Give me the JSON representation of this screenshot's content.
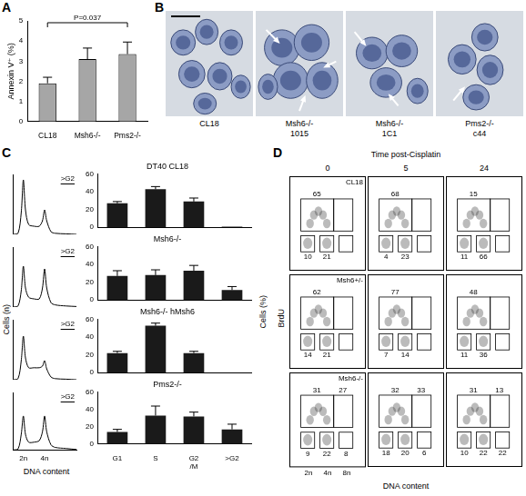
{
  "chart_data": [
    {
      "panel": "A",
      "type": "bar",
      "ylabel": "Annexin V⁺ (%)",
      "categories": [
        "CL18",
        "Msh6-/-",
        "Pms2-/-"
      ],
      "values": [
        1.9,
        3.1,
        3.35
      ],
      "errors": [
        0.3,
        0.55,
        0.6
      ],
      "ylim": [
        0,
        5
      ],
      "yticks": [
        0,
        1,
        2,
        3,
        4,
        5
      ],
      "color": "#a6a6a6",
      "annotation": "P=0.037"
    },
    {
      "panel": "B",
      "type": "image",
      "images": [
        {
          "label": "CL18"
        },
        {
          "label": "Msh6-/- 1015"
        },
        {
          "label": "Msh6-/- 1C1"
        },
        {
          "label": "Pms2-/- c44"
        }
      ]
    },
    {
      "panel": "C",
      "type": "group",
      "histograms": {
        "type": "line",
        "xlabel": "DNA content",
        "ylabel": "Cells (n)",
        "color": "#000000",
        "xlim": [
          1,
          7
        ],
        "ylim": [
          0,
          110
        ],
        "xticks": [
          {
            "value": 2,
            "label": "2n"
          },
          {
            "value": 4,
            "label": "4n"
          }
        ],
        "yticks": [],
        "x": [
          1,
          1.5,
          1.8,
          2,
          2.2,
          2.5,
          3,
          3.5,
          3.8,
          4,
          4.2,
          4.6,
          5,
          6,
          7
        ],
        "charts": [
          {
            "annotation": ">G2",
            "tick_labels": false,
            "values": [
              0,
              2,
              40,
              100,
              45,
              18,
              15,
              15,
              25,
              45,
              25,
              5,
              2,
              1,
              0
            ]
          },
          {
            "annotation": ">G2",
            "tick_labels": false,
            "values": [
              0,
              2,
              30,
              75,
              35,
              18,
              15,
              15,
              35,
              70,
              35,
              8,
              4,
              2,
              1
            ]
          },
          {
            "annotation": ">G2",
            "tick_labels": false,
            "values": [
              0,
              2,
              35,
              80,
              40,
              22,
              22,
              22,
              25,
              35,
              20,
              5,
              2,
              1,
              0
            ]
          },
          {
            "annotation": ">G2",
            "tick_labels": "x",
            "values": [
              0,
              2,
              30,
              65,
              30,
              15,
              15,
              18,
              35,
              65,
              35,
              10,
              5,
              3,
              1
            ]
          }
        ]
      },
      "bars": {
        "type": "bar",
        "ylabel": "Cells (%)",
        "color": "#1a1a1a",
        "categories": [
          "G1",
          "S",
          "G2/M",
          ">G2"
        ],
        "ylim": [
          0,
          60
        ],
        "yticks": [
          0,
          20,
          40,
          60
        ],
        "charts": [
          {
            "title": "DT40 CL18",
            "tick_labels": "y",
            "values": [
              27,
              43,
              29,
              0.5
            ],
            "errors": [
              2,
              3,
              4,
              null
            ]
          },
          {
            "title": "Msh6-/-",
            "tick_labels": "y",
            "values": [
              27,
              28,
              33,
              11
            ],
            "errors": [
              6,
              6,
              6,
              4
            ]
          },
          {
            "title": "Msh6-/- hMsh6",
            "tick_labels": "y",
            "values": [
              22,
              53,
              22,
              null
            ],
            "errors": [
              2,
              3,
              2,
              null
            ]
          },
          {
            "title": "Pms2-/-",
            "values": [
              14,
              33,
              32,
              17
            ],
            "errors": [
              3,
              11,
              5,
              6
            ]
          }
        ]
      }
    },
    {
      "panel": "D",
      "type": "scatter",
      "title": "Time post-Cisplatin",
      "xlabel": "DNA content",
      "ylabel": "BrdU",
      "log": "x",
      "xlim": [
        1,
        16
      ],
      "ylim": [
        0,
        100
      ],
      "xticks": [
        {
          "value": 2,
          "label": "2n"
        },
        {
          "value": 4,
          "label": "4n"
        },
        {
          "value": 8,
          "label": "8n"
        }
      ],
      "yticks": [],
      "columns": [
        "0",
        "5",
        "24"
      ],
      "rows": [
        {
          "name": "CL18",
          "cells": [
            {
              "values": [
                65,
                null,
                10,
                21,
                null
              ],
              "tick_labels": false
            },
            {
              "values": [
                68,
                null,
                4,
                23,
                null
              ],
              "tick_labels": false
            },
            {
              "values": [
                15,
                null,
                11,
                66,
                null
              ],
              "tick_labels": false
            }
          ]
        },
        {
          "name": "Msh6+/-",
          "cells": [
            {
              "values": [
                62,
                null,
                14,
                21,
                null
              ],
              "tick_labels": false
            },
            {
              "values": [
                77,
                null,
                7,
                14,
                null
              ],
              "tick_labels": false
            },
            {
              "values": [
                48,
                null,
                11,
                36,
                null
              ],
              "tick_labels": false
            }
          ]
        },
        {
          "name": "Msh6-/-",
          "cells": [
            {
              "values": [
                31,
                27,
                9,
                22,
                8
              ],
              "tick_labels": "x"
            },
            {
              "values": [
                32,
                33,
                18,
                20,
                6
              ],
              "tick_labels": false
            },
            {
              "values": [
                31,
                13,
                10,
                22,
                22
              ],
              "tick_labels": false
            }
          ]
        }
      ]
    }
  ]
}
